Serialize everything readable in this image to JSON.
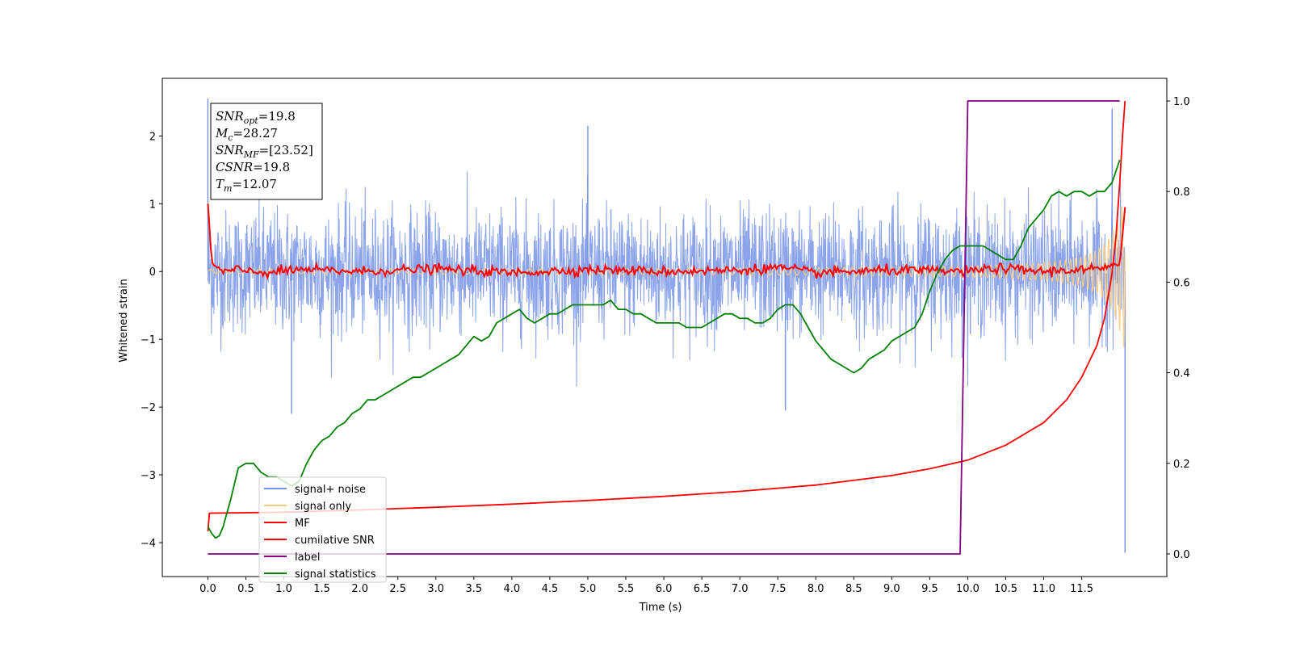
{
  "chart_data": {
    "type": "line",
    "xlabel": "Time (s)",
    "ylabel": "Whitened strain",
    "xlim": [
      -0.6,
      12.62
    ],
    "ylim": [
      -4.5,
      2.85
    ],
    "y2lim": [
      -0.05,
      1.05
    ],
    "x_ticks": [
      0.0,
      0.5,
      1.0,
      1.5,
      2.0,
      2.5,
      3.0,
      3.5,
      4.0,
      4.5,
      5.0,
      5.5,
      6.0,
      6.5,
      7.0,
      7.5,
      8.0,
      8.5,
      9.0,
      9.5,
      10.0,
      10.5,
      11.0,
      11.5
    ],
    "x_tick_labels": [
      "0.0",
      "0.5",
      "1.0",
      "1.5",
      "2.0",
      "2.5",
      "3.0",
      "3.5",
      "4.0",
      "4.5",
      "5.0",
      "5.5",
      "6.0",
      "6.5",
      "7.0",
      "7.5",
      "8.0",
      "8.5",
      "9.0",
      "9.5",
      "10.0",
      "10.5",
      "11.0",
      "11.5"
    ],
    "y_ticks": [
      -4,
      -3,
      -2,
      -1,
      0,
      1,
      2
    ],
    "y_tick_labels": [
      "−4",
      "−3",
      "−2",
      "−1",
      "0",
      "1",
      "2"
    ],
    "y2_ticks": [
      0.0,
      0.2,
      0.4,
      0.6,
      0.8,
      1.0
    ],
    "y2_tick_labels": [
      "0.0",
      "0.2",
      "0.4",
      "0.6",
      "0.8",
      "1.0"
    ],
    "grid": false,
    "legend_position": "lower-left",
    "legend": [
      {
        "name": "signal+ noise",
        "color": "#7593e6"
      },
      {
        "name": "signal only",
        "color": "#ffcc80"
      },
      {
        "name": "MF",
        "color": "#ff0000"
      },
      {
        "name": "cumilative SNR",
        "color": "#ff0000"
      },
      {
        "name": "label",
        "color": "#800080"
      },
      {
        "name": "signal statistics",
        "color": "#008000"
      }
    ],
    "annotation": {
      "lines": [
        {
          "label": "SNR",
          "subscript": "opt",
          "value": "=19.8"
        },
        {
          "label": "M",
          "subscript": "c",
          "value": "=28.27"
        },
        {
          "label": "SNR",
          "subscript": "MF",
          "value": "=[23.52]"
        },
        {
          "label": "CSNR",
          "subscript": "",
          "value": "=19.8"
        },
        {
          "label": "T",
          "subscript": "m",
          "value": "=12.07"
        }
      ]
    },
    "series": [
      {
        "name": "signal+ noise",
        "axis": "left",
        "color": "#7593e6",
        "style": "dense noise band",
        "x_range": [
          0.0,
          12.07
        ],
        "typical_range": [
          -1.4,
          1.3
        ],
        "extremes": [
          {
            "x": 0.0,
            "y": 2.55
          },
          {
            "x": 1.1,
            "y": -2.1
          },
          {
            "x": 5.0,
            "y": 2.15
          },
          {
            "x": 7.6,
            "y": -2.05
          },
          {
            "x": 11.9,
            "y": 2.4
          },
          {
            "x": 12.07,
            "y": -4.15
          }
        ]
      },
      {
        "name": "signal only",
        "axis": "left",
        "color": "#ffcc80",
        "style": "chirp",
        "x": [
          0.0,
          2.0,
          4.0,
          6.0,
          8.0,
          9.0,
          10.0,
          10.5,
          11.0,
          11.3,
          11.5,
          11.7,
          11.85,
          11.95,
          12.03,
          12.07
        ],
        "envelope": [
          0.03,
          0.035,
          0.04,
          0.045,
          0.055,
          0.065,
          0.08,
          0.1,
          0.13,
          0.17,
          0.22,
          0.32,
          0.48,
          0.7,
          1.0,
          1.2
        ]
      },
      {
        "name": "MF",
        "axis": "left",
        "color": "#ff0000",
        "x": [
          0.0,
          0.05,
          0.1,
          0.2,
          0.4,
          0.8,
          1.2,
          2.0,
          3.0,
          4.0,
          5.0,
          6.0,
          7.0,
          7.5,
          8.0,
          9.0,
          10.0,
          10.4,
          11.0,
          11.5,
          11.9,
          12.0,
          12.07
        ],
        "values": [
          1.0,
          0.15,
          0.05,
          0.0,
          0.02,
          -0.02,
          0.03,
          0.0,
          0.04,
          -0.02,
          0.03,
          0.0,
          0.02,
          0.06,
          -0.02,
          0.02,
          0.0,
          0.05,
          0.0,
          0.03,
          0.05,
          0.1,
          0.95
        ]
      },
      {
        "name": "cumilative SNR",
        "axis": "right",
        "color": "#ff0000",
        "x": [
          0.0,
          0.02,
          1.0,
          2.0,
          3.0,
          4.0,
          5.0,
          6.0,
          7.0,
          8.0,
          9.0,
          9.5,
          10.0,
          10.5,
          11.0,
          11.3,
          11.5,
          11.7,
          11.8,
          11.9,
          11.95,
          12.0,
          12.04,
          12.07
        ],
        "values": [
          0.05,
          0.09,
          0.092,
          0.097,
          0.103,
          0.11,
          0.118,
          0.127,
          0.138,
          0.152,
          0.173,
          0.188,
          0.207,
          0.24,
          0.29,
          0.34,
          0.39,
          0.46,
          0.52,
          0.62,
          0.7,
          0.82,
          0.93,
          1.0
        ]
      },
      {
        "name": "label",
        "axis": "right",
        "color": "#800080",
        "x": [
          0.0,
          9.9,
          10.0,
          12.0
        ],
        "values": [
          0.0,
          0.0,
          1.0,
          1.0
        ]
      },
      {
        "name": "signal statistics",
        "axis": "right",
        "color": "#008000",
        "x": [
          0.0,
          0.05,
          0.1,
          0.15,
          0.2,
          0.3,
          0.4,
          0.5,
          0.6,
          0.7,
          0.8,
          0.9,
          1.0,
          1.1,
          1.2,
          1.3,
          1.4,
          1.5,
          1.6,
          1.7,
          1.8,
          1.9,
          2.0,
          2.1,
          2.2,
          2.3,
          2.4,
          2.5,
          2.6,
          2.7,
          2.8,
          2.9,
          3.0,
          3.1,
          3.2,
          3.3,
          3.4,
          3.5,
          3.6,
          3.7,
          3.8,
          3.9,
          4.0,
          4.1,
          4.2,
          4.3,
          4.4,
          4.5,
          4.6,
          4.7,
          4.8,
          4.9,
          5.0,
          5.1,
          5.2,
          5.3,
          5.4,
          5.5,
          5.6,
          5.7,
          5.8,
          5.9,
          6.0,
          6.1,
          6.2,
          6.3,
          6.4,
          6.5,
          6.6,
          6.7,
          6.8,
          6.9,
          7.0,
          7.1,
          7.2,
          7.3,
          7.4,
          7.5,
          7.6,
          7.7,
          7.8,
          7.9,
          8.0,
          8.1,
          8.2,
          8.3,
          8.4,
          8.5,
          8.6,
          8.7,
          8.8,
          8.9,
          9.0,
          9.1,
          9.2,
          9.3,
          9.4,
          9.5,
          9.6,
          9.7,
          9.8,
          9.9,
          10.0,
          10.1,
          10.2,
          10.3,
          10.4,
          10.5,
          10.6,
          10.7,
          10.8,
          10.9,
          11.0,
          11.1,
          11.2,
          11.3,
          11.4,
          11.5,
          11.6,
          11.7,
          11.8,
          11.9,
          12.0
        ],
        "values": [
          0.06,
          0.045,
          0.035,
          0.04,
          0.06,
          0.12,
          0.19,
          0.2,
          0.2,
          0.18,
          0.17,
          0.17,
          0.16,
          0.15,
          0.16,
          0.2,
          0.23,
          0.25,
          0.26,
          0.28,
          0.29,
          0.31,
          0.32,
          0.34,
          0.34,
          0.35,
          0.36,
          0.37,
          0.38,
          0.39,
          0.39,
          0.4,
          0.41,
          0.42,
          0.43,
          0.44,
          0.46,
          0.48,
          0.47,
          0.48,
          0.51,
          0.52,
          0.53,
          0.54,
          0.52,
          0.51,
          0.52,
          0.53,
          0.53,
          0.54,
          0.55,
          0.55,
          0.55,
          0.55,
          0.55,
          0.56,
          0.54,
          0.54,
          0.53,
          0.53,
          0.52,
          0.51,
          0.51,
          0.51,
          0.51,
          0.5,
          0.5,
          0.5,
          0.51,
          0.52,
          0.53,
          0.53,
          0.52,
          0.52,
          0.51,
          0.51,
          0.52,
          0.54,
          0.55,
          0.55,
          0.53,
          0.5,
          0.47,
          0.45,
          0.43,
          0.42,
          0.41,
          0.4,
          0.41,
          0.43,
          0.44,
          0.45,
          0.47,
          0.48,
          0.49,
          0.5,
          0.53,
          0.58,
          0.62,
          0.65,
          0.67,
          0.68,
          0.68,
          0.68,
          0.68,
          0.67,
          0.66,
          0.65,
          0.65,
          0.68,
          0.72,
          0.74,
          0.76,
          0.79,
          0.8,
          0.79,
          0.8,
          0.8,
          0.79,
          0.8,
          0.8,
          0.82,
          0.87
        ]
      }
    ]
  }
}
